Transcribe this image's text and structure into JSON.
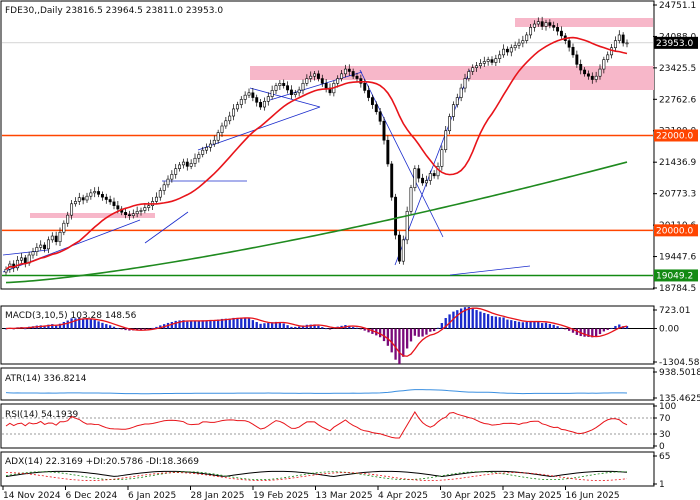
{
  "header": {
    "symbol_line": "FDE30,,Daily  23816.5 23964.5 23811.0 23953.0"
  },
  "panels": {
    "macd": {
      "label": "MACD(3,10,5) 103.28 148.56"
    },
    "atr": {
      "label": "ATR(14) 336.8214"
    },
    "rsi": {
      "label": "RSI(14) 54.1939"
    },
    "adx": {
      "label": "ADX(14) 22.3169 +DI:20.5786 -DI:18.3669"
    }
  },
  "price_axis_ticks": [
    "24751.1",
    "24088.0",
    "23425.5",
    "22762.6",
    "22100.0",
    "21436.9",
    "20773.3",
    "20110.6",
    "19447.6",
    "18784.5"
  ],
  "macd_axis_ticks": [
    "723.01",
    "0.00",
    "-1304.58"
  ],
  "atr_axis_ticks": [
    "938.5018",
    "135.4625"
  ],
  "rsi_axis_ticks": [
    "100",
    "70",
    "30",
    "0"
  ],
  "adx_axis_ticks": [
    "65",
    "1"
  ],
  "x_axis_ticks": [
    "14 Nov 2024",
    "6 Dec 2024",
    "6 Jan 2025",
    "28 Jan 2025",
    "19 Feb 2025",
    "13 Mar 2025",
    "4 Apr 2025",
    "30 Apr 2025",
    "23 May 2025",
    "16 Jun 2025"
  ],
  "level_labels": {
    "l22000": "22000.0",
    "l20000": "20000.0",
    "l19049": "19049.2",
    "last": "23953.0"
  },
  "colors": {
    "bull": "#000000",
    "bear": "#000000",
    "ma_fast": "#e8141a",
    "ma_slow": "#1f8a1f",
    "level_line": "#ff4500",
    "support_line": "#138a13",
    "zone": "#f7b7c9",
    "trendline": "#1a2bcc",
    "macd_pos": "#1a2bcc",
    "macd_neg": "#7a0a7a",
    "macd_signal": "#e8141a",
    "atr": "#3a8fe0",
    "rsi": "#e8141a",
    "adx": "#000000",
    "plus_di": "#1a8a1a",
    "minus_di": "#e8141a"
  },
  "chart_data": {
    "type": "candlestick",
    "title": "FDE30,,Daily",
    "ohlc_last": {
      "open": 23816.5,
      "high": 23964.5,
      "low": 23811.0,
      "close": 23953.0
    },
    "ylim": [
      18784.5,
      24751.1
    ],
    "closes": [
      19180,
      19290,
      19210,
      19370,
      19420,
      19310,
      19480,
      19550,
      19640,
      19690,
      19610,
      19800,
      19880,
      19760,
      19960,
      20150,
      20320,
      20560,
      20610,
      20690,
      20640,
      20720,
      20790,
      20820,
      20760,
      20700,
      20650,
      20600,
      20520,
      20450,
      20380,
      20330,
      20310,
      20350,
      20400,
      20420,
      20480,
      20520,
      20610,
      20700,
      20840,
      20960,
      21080,
      21180,
      21300,
      21380,
      21440,
      21350,
      21410,
      21520,
      21600,
      21690,
      21750,
      21820,
      21900,
      22060,
      22200,
      22310,
      22410,
      22560,
      22650,
      22760,
      22850,
      22900,
      22800,
      22700,
      22600,
      22720,
      22820,
      22950,
      23050,
      23100,
      23050,
      22960,
      22860,
      22900,
      22960,
      23100,
      23200,
      23250,
      23300,
      23200,
      23100,
      23000,
      22900,
      23100,
      23200,
      23300,
      23400,
      23350,
      23250,
      23200,
      23100,
      22950,
      22800,
      22650,
      22500,
      22300,
      21900,
      21400,
      20700,
      19900,
      19350,
      19800,
      20400,
      20900,
      21300,
      21100,
      21000,
      21050,
      21200,
      21150,
      21350,
      21700,
      22100,
      22400,
      22650,
      22800,
      23000,
      23200,
      23350,
      23430,
      23470,
      23520,
      23560,
      23600,
      23540,
      23620,
      23700,
      23820,
      23760,
      23850,
      23900,
      23950,
      24000,
      24120,
      24280,
      24350,
      24400,
      24300,
      24380,
      24320,
      24280,
      24200,
      24100,
      24000,
      23860,
      23700,
      23500,
      23380,
      23300,
      23250,
      23180,
      23250,
      23400,
      23600,
      23700,
      23850,
      24000,
      24120,
      23950,
      23953
    ],
    "ma_fast_endpoints": [
      19400,
      23650
    ],
    "ma_slow_endpoints": [
      18900,
      21440
    ],
    "levels": [
      22000.0,
      20000.0,
      19049.2
    ],
    "macd": {
      "last": 103.28,
      "signal": 148.56,
      "range": [
        -1304.58,
        723.01
      ]
    },
    "atr": {
      "last": 336.8214,
      "range": [
        135.4625,
        938.5018
      ]
    },
    "rsi": {
      "last": 54.1939,
      "levels": [
        70,
        30
      ],
      "range": [
        0,
        100
      ]
    },
    "adx": {
      "adx": 22.3169,
      "plus_di": 20.5786,
      "minus_di": 18.3669
    }
  }
}
